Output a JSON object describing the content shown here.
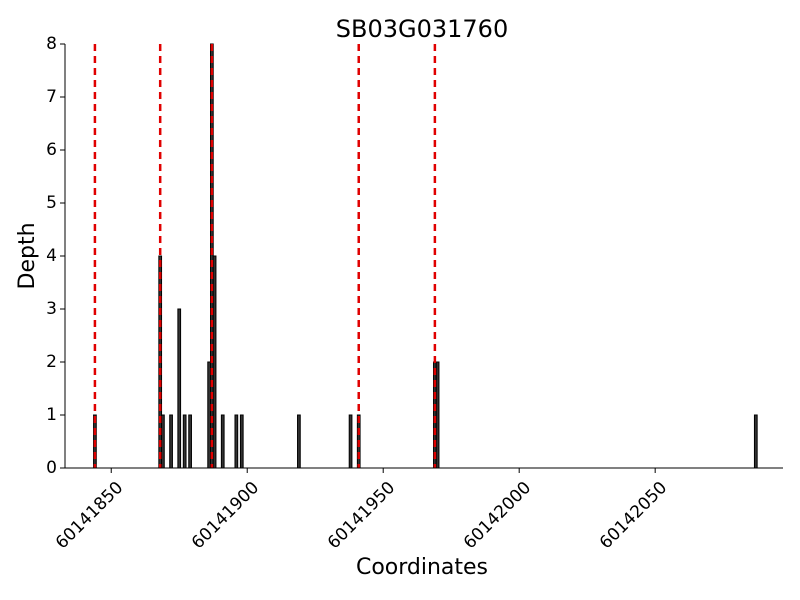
{
  "chart_data": {
    "type": "bar",
    "title": "SB03G031760",
    "x_label": "Coordinates",
    "y_label": "Depth",
    "x": [
      60141844,
      60141868,
      60141869,
      60141872,
      60141875,
      60141877,
      60141879,
      60141886,
      60141887,
      60141888,
      60141891,
      60141896,
      60141898,
      60141919,
      60141938,
      60141941,
      60141969,
      60141970,
      60142087
    ],
    "values": [
      1,
      4,
      1,
      1,
      3,
      1,
      1,
      2,
      8,
      4,
      1,
      1,
      1,
      1,
      1,
      1,
      2,
      2,
      1
    ],
    "color": "#333333",
    "vlines": [
      60141844,
      60141868,
      60141887,
      60141941,
      60141969
    ],
    "vline_color": "#e00000",
    "xlim": [
      60141833,
      60142097
    ],
    "xticks": [
      60141850,
      60141900,
      60141950,
      60142000,
      60142050
    ],
    "ylim": [
      0,
      8
    ],
    "yticks": [
      0,
      1,
      2,
      3,
      4,
      5,
      6,
      7,
      8
    ]
  }
}
